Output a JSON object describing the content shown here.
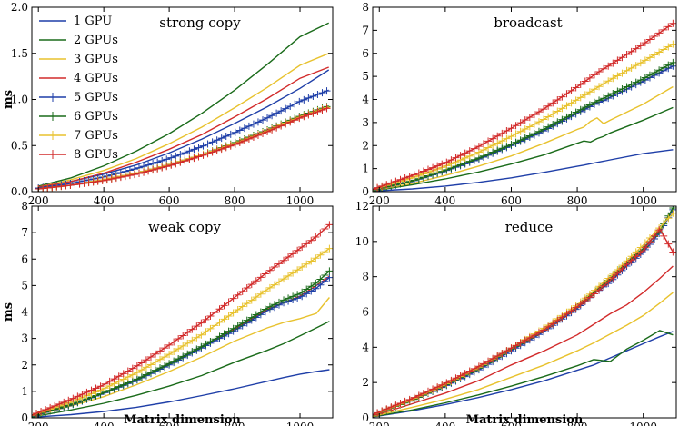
{
  "chart_data": [
    {
      "type": "line",
      "title": "strong copy",
      "xlabel": "",
      "ylabel": "ms",
      "xlim": [
        180,
        1100
      ],
      "ylim": [
        0,
        2.0
      ],
      "xticks": [
        200,
        400,
        600,
        800,
        1000
      ],
      "yticks": [
        0.0,
        0.5,
        1.0,
        1.5,
        2.0
      ],
      "ytick_labels": [
        "0.0",
        "0.5",
        "1.0",
        "1.5",
        "2.0"
      ],
      "legend": "top-left",
      "x": [
        200,
        300,
        400,
        500,
        600,
        700,
        800,
        900,
        1000,
        1088
      ],
      "series": [
        {
          "name": "1 GPU",
          "color": "#1f3fa8",
          "marker": "none",
          "values": [
            0.05,
            0.11,
            0.19,
            0.29,
            0.42,
            0.57,
            0.74,
            0.92,
            1.12,
            1.32
          ]
        },
        {
          "name": "2 GPUs",
          "color": "#1a6b1a",
          "marker": "none",
          "values": [
            0.06,
            0.15,
            0.28,
            0.44,
            0.63,
            0.85,
            1.1,
            1.38,
            1.68,
            1.83
          ]
        },
        {
          "name": "3 GPUs",
          "color": "#e8c22e",
          "marker": "none",
          "values": [
            0.05,
            0.13,
            0.23,
            0.36,
            0.52,
            0.7,
            0.91,
            1.13,
            1.37,
            1.5
          ]
        },
        {
          "name": "4 GPUs",
          "color": "#d22b2b",
          "marker": "none",
          "values": [
            0.05,
            0.11,
            0.2,
            0.32,
            0.46,
            0.62,
            0.81,
            1.01,
            1.23,
            1.35
          ]
        },
        {
          "name": "5 GPUs",
          "color": "#1f3fa8",
          "marker": "plus",
          "values": [
            0.04,
            0.09,
            0.16,
            0.25,
            0.36,
            0.49,
            0.64,
            0.8,
            0.98,
            1.1
          ]
        },
        {
          "name": "6 GPUs",
          "color": "#1a6b1a",
          "marker": "plus",
          "values": [
            0.03,
            0.07,
            0.13,
            0.2,
            0.29,
            0.4,
            0.53,
            0.67,
            0.82,
            0.93
          ]
        },
        {
          "name": "7 GPUs",
          "color": "#e8c22e",
          "marker": "plus",
          "values": [
            0.03,
            0.07,
            0.13,
            0.2,
            0.29,
            0.4,
            0.52,
            0.66,
            0.81,
            0.92
          ]
        },
        {
          "name": "8 GPUs",
          "color": "#d22b2b",
          "marker": "plus",
          "values": [
            0.03,
            0.07,
            0.12,
            0.19,
            0.28,
            0.39,
            0.51,
            0.65,
            0.8,
            0.91
          ]
        }
      ]
    },
    {
      "type": "line",
      "title": "broadcast",
      "xlabel": "",
      "ylabel": "",
      "xlim": [
        180,
        1100
      ],
      "ylim": [
        0,
        8
      ],
      "xticks": [
        200,
        400,
        600,
        800,
        1000
      ],
      "yticks": [
        0,
        1,
        2,
        3,
        4,
        5,
        6,
        7,
        8
      ],
      "ytick_labels": [
        "0",
        "1",
        "2",
        "3",
        "4",
        "5",
        "6",
        "7",
        "8"
      ],
      "x": [
        180,
        300,
        400,
        500,
        600,
        700,
        800,
        820,
        840,
        860,
        880,
        900,
        1000,
        1090
      ],
      "series": [
        {
          "name": "1 GPU",
          "color": "#1f3fa8",
          "marker": "none",
          "values": [
            0.02,
            0.12,
            0.24,
            0.4,
            0.6,
            0.84,
            1.1,
            1.15,
            1.21,
            1.27,
            1.32,
            1.38,
            1.65,
            1.82
          ]
        },
        {
          "name": "2 GPUs",
          "color": "#1a6b1a",
          "marker": "none",
          "values": [
            0.03,
            0.3,
            0.55,
            0.85,
            1.2,
            1.6,
            2.1,
            2.2,
            2.15,
            2.3,
            2.4,
            2.55,
            3.1,
            3.65
          ]
        },
        {
          "name": "3 GPUs",
          "color": "#e8c22e",
          "marker": "none",
          "values": [
            0.05,
            0.35,
            0.7,
            1.1,
            1.55,
            2.1,
            2.7,
            2.8,
            3.05,
            3.2,
            2.95,
            3.1,
            3.8,
            4.55
          ]
        },
        {
          "name": "4 GPUs",
          "color": "#d22b2b",
          "marker": "none",
          "values": [
            0.06,
            0.45,
            0.9,
            1.4,
            2.0,
            2.65,
            3.4,
            3.55,
            3.7,
            3.85,
            3.95,
            4.1,
            4.8,
            5.45
          ]
        },
        {
          "name": "5 GPUs",
          "color": "#1f3fa8",
          "marker": "plus",
          "values": [
            0.06,
            0.45,
            0.9,
            1.4,
            2.0,
            2.65,
            3.4,
            3.55,
            3.7,
            3.85,
            3.95,
            4.1,
            4.8,
            5.45
          ]
        },
        {
          "name": "6 GPUs",
          "color": "#1a6b1a",
          "marker": "plus",
          "values": [
            0.07,
            0.47,
            0.93,
            1.45,
            2.05,
            2.72,
            3.48,
            3.63,
            3.78,
            3.93,
            4.05,
            4.2,
            4.9,
            5.6
          ]
        },
        {
          "name": "7 GPUs",
          "color": "#e8c22e",
          "marker": "plus",
          "values": [
            0.09,
            0.6,
            1.1,
            1.7,
            2.4,
            3.15,
            4.0,
            4.17,
            4.34,
            4.51,
            4.68,
            4.85,
            5.65,
            6.4
          ]
        },
        {
          "name": "8 GPUs",
          "color": "#d22b2b",
          "marker": "plus",
          "values": [
            0.1,
            0.7,
            1.25,
            1.95,
            2.75,
            3.6,
            4.55,
            4.75,
            4.95,
            5.15,
            5.33,
            5.5,
            6.4,
            7.3
          ]
        }
      ]
    },
    {
      "type": "line",
      "title": "weak copy",
      "xlabel": "Matrix dimension",
      "ylabel": "ms",
      "xlim": [
        180,
        1100
      ],
      "ylim": [
        0,
        8
      ],
      "xticks": [
        200,
        400,
        600,
        800,
        1000
      ],
      "yticks": [
        0,
        1,
        2,
        3,
        4,
        5,
        6,
        7,
        8
      ],
      "ytick_labels": [
        "0",
        "1",
        "2",
        "3",
        "4",
        "5",
        "6",
        "7",
        "8"
      ],
      "x": [
        180,
        300,
        400,
        500,
        600,
        700,
        800,
        900,
        950,
        1000,
        1050,
        1090
      ],
      "series": [
        {
          "name": "1 GPU",
          "color": "#1f3fa8",
          "marker": "none",
          "values": [
            0.02,
            0.12,
            0.24,
            0.4,
            0.6,
            0.84,
            1.1,
            1.38,
            1.52,
            1.65,
            1.75,
            1.82
          ]
        },
        {
          "name": "2 GPUs",
          "color": "#1a6b1a",
          "marker": "none",
          "values": [
            0.03,
            0.3,
            0.55,
            0.85,
            1.2,
            1.6,
            2.1,
            2.55,
            2.8,
            3.1,
            3.4,
            3.65
          ]
        },
        {
          "name": "3 GPUs",
          "color": "#e8c22e",
          "marker": "none",
          "values": [
            0.05,
            0.45,
            0.8,
            1.25,
            1.75,
            2.3,
            2.9,
            3.4,
            3.6,
            3.75,
            3.95,
            4.55
          ]
        },
        {
          "name": "4 GPUs",
          "color": "#d22b2b",
          "marker": "none",
          "values": [
            0.06,
            0.5,
            0.95,
            1.45,
            2.05,
            2.7,
            3.35,
            4.1,
            4.35,
            4.6,
            5.0,
            5.35
          ]
        },
        {
          "name": "5 GPUs",
          "color": "#1f3fa8",
          "marker": "plus",
          "values": [
            0.06,
            0.48,
            0.93,
            1.42,
            2.0,
            2.65,
            3.3,
            4.05,
            4.35,
            4.55,
            4.9,
            5.3
          ]
        },
        {
          "name": "6 GPUs",
          "color": "#1a6b1a",
          "marker": "plus",
          "values": [
            0.07,
            0.5,
            0.95,
            1.45,
            2.05,
            2.7,
            3.4,
            4.15,
            4.45,
            4.7,
            5.1,
            5.55
          ]
        },
        {
          "name": "7 GPUs",
          "color": "#e8c22e",
          "marker": "plus",
          "values": [
            0.09,
            0.6,
            1.1,
            1.7,
            2.4,
            3.15,
            4.0,
            4.85,
            5.25,
            5.65,
            6.05,
            6.4
          ]
        },
        {
          "name": "8 GPUs",
          "color": "#d22b2b",
          "marker": "plus",
          "values": [
            0.1,
            0.7,
            1.25,
            1.95,
            2.75,
            3.6,
            4.55,
            5.5,
            5.95,
            6.4,
            6.85,
            7.3
          ]
        }
      ]
    },
    {
      "type": "line",
      "title": "reduce",
      "xlabel": "Matrix dimension",
      "ylabel": "",
      "xlim": [
        180,
        1100
      ],
      "ylim": [
        0,
        12
      ],
      "xticks": [
        200,
        400,
        600,
        800,
        1000
      ],
      "yticks": [
        0,
        2,
        4,
        6,
        8,
        10,
        12
      ],
      "ytick_labels": [
        "0",
        "2",
        "4",
        "6",
        "8",
        "10",
        "12"
      ],
      "x": [
        180,
        300,
        400,
        500,
        600,
        700,
        800,
        850,
        900,
        950,
        1000,
        1050,
        1090
      ],
      "series": [
        {
          "name": "1 GPU",
          "color": "#1f3fa8",
          "marker": "none",
          "values": [
            0.05,
            0.4,
            0.75,
            1.15,
            1.6,
            2.1,
            2.7,
            3.0,
            3.4,
            3.8,
            4.2,
            4.6,
            4.9
          ]
        },
        {
          "name": "2 GPUs",
          "color": "#1a6b1a",
          "marker": "none",
          "values": [
            0.06,
            0.45,
            0.85,
            1.3,
            1.8,
            2.35,
            2.95,
            3.3,
            3.2,
            3.9,
            4.4,
            4.95,
            4.7
          ]
        },
        {
          "name": "3 GPUs",
          "color": "#e8c22e",
          "marker": "none",
          "values": [
            0.08,
            0.6,
            1.05,
            1.6,
            2.3,
            3.0,
            3.8,
            4.25,
            4.75,
            5.25,
            5.8,
            6.5,
            7.1
          ]
        },
        {
          "name": "4 GPUs",
          "color": "#d22b2b",
          "marker": "none",
          "values": [
            0.1,
            0.8,
            1.4,
            2.1,
            3.0,
            3.8,
            4.7,
            5.3,
            5.9,
            6.4,
            7.1,
            7.9,
            8.6
          ]
        },
        {
          "name": "5 GPUs",
          "color": "#1f3fa8",
          "marker": "plus",
          "values": [
            0.15,
            1.0,
            1.8,
            2.7,
            3.8,
            4.9,
            6.2,
            7.0,
            7.7,
            8.6,
            9.4,
            10.5,
            11.8
          ]
        },
        {
          "name": "6 GPUs",
          "color": "#1a6b1a",
          "marker": "plus",
          "values": [
            0.15,
            1.0,
            1.85,
            2.8,
            3.9,
            5.0,
            6.3,
            7.1,
            7.9,
            8.8,
            9.6,
            10.6,
            11.9
          ]
        },
        {
          "name": "7 GPUs",
          "color": "#e8c22e",
          "marker": "plus",
          "values": [
            0.16,
            1.05,
            1.9,
            2.85,
            3.95,
            5.1,
            6.4,
            7.2,
            8.0,
            8.9,
            9.8,
            10.8,
            11.6
          ]
        },
        {
          "name": "8 GPUs",
          "color": "#d22b2b",
          "marker": "plus",
          "values": [
            0.18,
            1.1,
            1.95,
            2.9,
            3.95,
            5.0,
            6.3,
            7.0,
            7.8,
            8.7,
            9.5,
            10.7,
            9.4
          ]
        }
      ]
    }
  ]
}
